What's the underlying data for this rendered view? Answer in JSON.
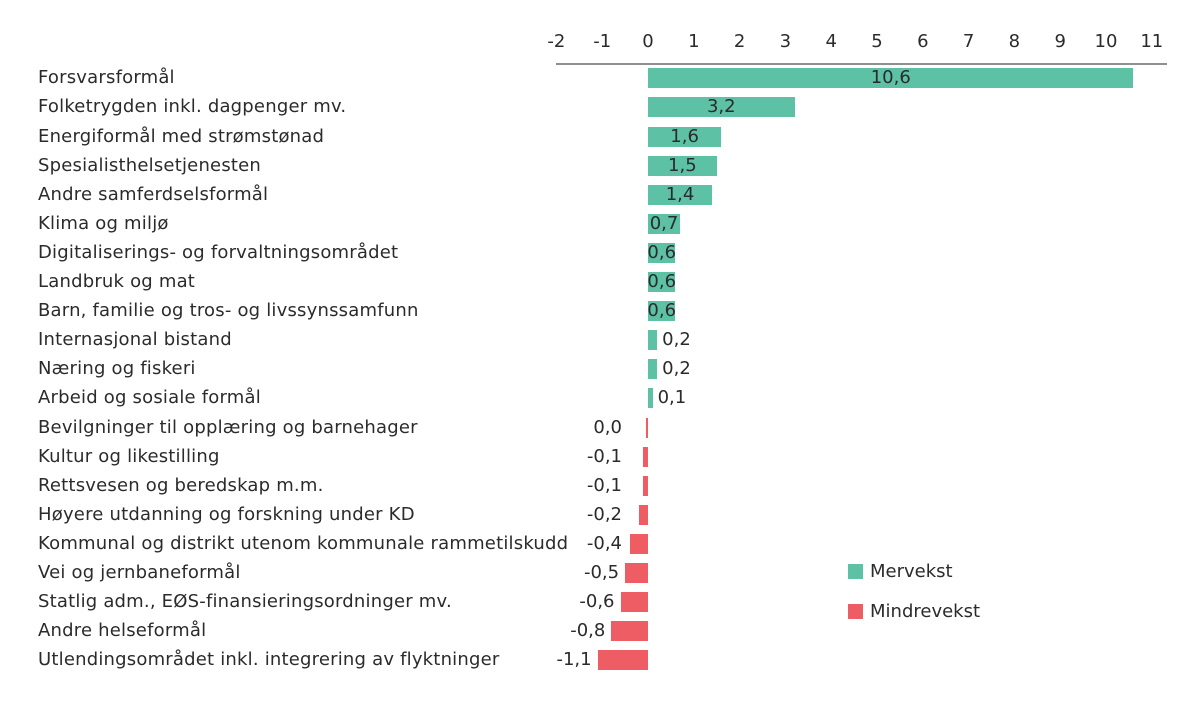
{
  "chart_data": {
    "type": "bar",
    "orientation": "horizontal",
    "title": "",
    "xlabel": "",
    "ylabel": "",
    "categories": [
      "Forsvarsformål",
      "Folketrygden inkl. dagpenger mv.",
      "Energiformål med strømstønad",
      "Spesialisthelsetjenesten",
      "Andre samferdselsformål",
      "Klima og miljø",
      "Digitaliserings- og forvaltningsområdet",
      "Landbruk og mat",
      "Barn, familie og tros- og livssynssamfunn",
      "Internasjonal bistand",
      "Næring og fiskeri",
      "Arbeid og sosiale formål",
      "Bevilgninger til opplæring og barnehager",
      "Kultur og likestilling",
      "Rettsvesen og beredskap m.m.",
      "Høyere utdanning og forskning under KD",
      "Kommunal og distrikt utenom kommunale rammetilskudd",
      "Vei og jernbaneformål",
      "Statlig adm., EØS-finansieringsordninger mv.",
      "Andre helseformål",
      "Utlendingsområdet inkl. integrering av flyktninger"
    ],
    "values": [
      10.6,
      3.2,
      1.6,
      1.5,
      1.4,
      0.7,
      0.6,
      0.6,
      0.6,
      0.2,
      0.2,
      0.1,
      0.0,
      -0.1,
      -0.1,
      -0.2,
      -0.4,
      -0.5,
      -0.6,
      -0.8,
      -1.1
    ],
    "value_labels": [
      "10,6",
      "3,2",
      "1,6",
      "1,5",
      "1,4",
      "0,7",
      "0,6",
      "0,6",
      "0,6",
      "0,2",
      "0,2",
      "0,1",
      "0,0",
      "-0,1",
      "-0,1",
      "-0,2",
      "-0,4",
      "-0,5",
      "-0,6",
      "-0,8",
      "-1,1"
    ],
    "x_ticks": [
      "-2",
      "-1",
      "0",
      "1",
      "2",
      "3",
      "4",
      "5",
      "6",
      "7",
      "8",
      "9",
      "10",
      "11"
    ],
    "x_tick_values": [
      -2,
      -1,
      0,
      1,
      2,
      3,
      4,
      5,
      6,
      7,
      8,
      9,
      10,
      11
    ],
    "xlim": [
      -2,
      11.3
    ],
    "grid": false,
    "legend_position": "right-middle",
    "colors": {
      "positive": "#5cc1a5",
      "negative": "#ee5d64",
      "text": "#2b2b2b",
      "axis_line": "#8f8f8f"
    },
    "legend": [
      {
        "label": "Mervekst",
        "color": "#5cc1a5"
      },
      {
        "label": "Mindrevekst",
        "color": "#ee5d64"
      }
    ]
  }
}
